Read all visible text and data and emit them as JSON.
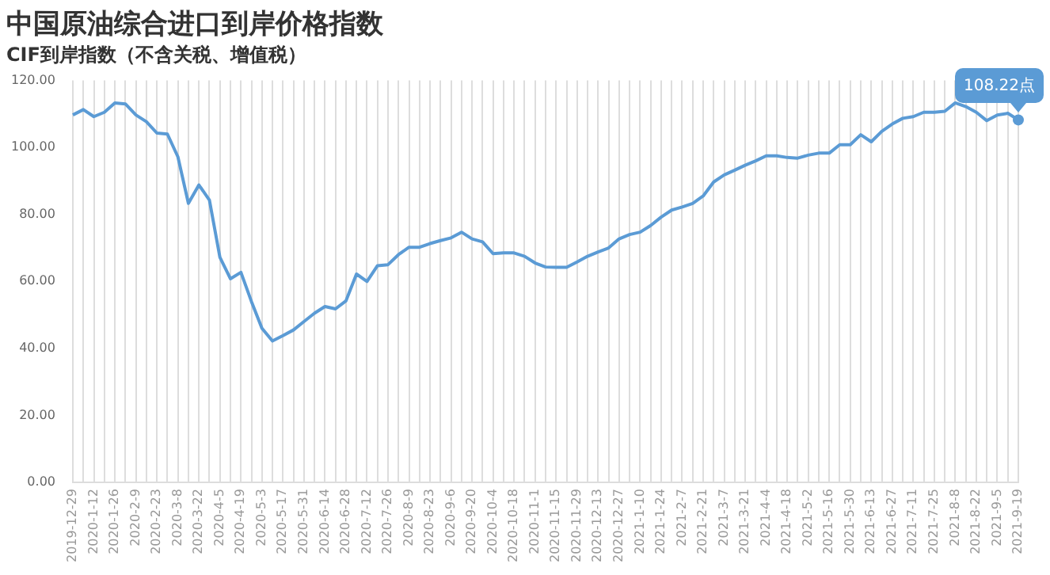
{
  "chart_data": {
    "type": "line",
    "title": "中国原油综合进口到岸价格指数",
    "subtitle": "CIF到岸指数（不含关税、增值税）",
    "categories": [
      "2019-12-29",
      null,
      "2020-1-12",
      null,
      "2020-1-26",
      null,
      "2020-2-9",
      null,
      "2020-2-23",
      null,
      "2020-3-8",
      null,
      "2020-3-22",
      null,
      "2020-4-5",
      null,
      "2020-4-19",
      null,
      "2020-5-3",
      null,
      "2020-5-17",
      null,
      "2020-5-31",
      null,
      "2020-6-14",
      null,
      "2020-6-28",
      null,
      "2020-7-12",
      null,
      "2020-7-26",
      null,
      "2020-8-9",
      null,
      "2020-8-23",
      null,
      "2020-9-6",
      null,
      "2020-9-20",
      null,
      "2020-10-4",
      null,
      "2020-10-18",
      null,
      "2020-11-1",
      null,
      "2020-11-15",
      null,
      "2020-11-29",
      null,
      "2020-12-13",
      null,
      "2020-12-27",
      null,
      "2021-1-10",
      null,
      "2021-1-24",
      null,
      "2021-2-7",
      null,
      "2021-2-21",
      null,
      "2021-3-7",
      null,
      "2021-3-21",
      null,
      "2021-4-4",
      null,
      "2021-4-18",
      null,
      "2021-5-2",
      null,
      "2021-5-16",
      null,
      "2021-5-30",
      null,
      "2021-6-13",
      null,
      "2021-6-27",
      null,
      "2021-7-11",
      null,
      "2021-7-25",
      null,
      "2021-8-8",
      null,
      "2021-8-22",
      null,
      "2021-9-5",
      null,
      "2021-9-19"
    ],
    "series": [
      {
        "color": "#5b9bd5",
        "values": [
          109.7,
          111.3,
          109.2,
          110.5,
          113.3,
          113,
          109.7,
          107.7,
          104.3,
          104,
          97.2,
          83.3,
          88.8,
          84.3,
          67.2,
          60.8,
          62.7,
          54,
          46,
          42.2,
          43.8,
          45.5,
          48,
          50.5,
          52.5,
          51.8,
          54.2,
          62.2,
          60,
          64.7,
          65,
          68,
          70.2,
          70.2,
          71.3,
          72.2,
          73,
          74.7,
          72.7,
          71.8,
          68.3,
          68.5,
          68.5,
          67.5,
          65.5,
          64.3,
          64.2,
          64.2,
          65.8,
          67.5,
          68.8,
          70,
          72.7,
          74,
          74.7,
          76.7,
          79.2,
          81.3,
          82.2,
          83.3,
          85.5,
          89.7,
          91.8,
          93.2,
          94.7,
          96,
          97.5,
          97.5,
          97,
          96.8,
          97.7,
          98.3,
          98.3,
          100.8,
          100.8,
          103.8,
          101.7,
          104.8,
          107,
          108.7,
          109.2,
          110.5,
          110.5,
          110.8,
          113.3,
          112.2,
          110.5,
          108,
          109.7,
          110.2,
          108.22
        ]
      }
    ],
    "ylim": [
      0,
      120
    ],
    "yticks": [
      {
        "value": 0,
        "label": "0.00"
      },
      {
        "value": 20,
        "label": "20.00"
      },
      {
        "value": 40,
        "label": "40.00"
      },
      {
        "value": 60,
        "label": "60.00"
      },
      {
        "value": 80,
        "label": "80.00"
      },
      {
        "value": 100,
        "label": "100.00"
      },
      {
        "value": 120,
        "label": "120.00"
      }
    ],
    "grid": "x",
    "legend": false,
    "annotations": [
      {
        "text": "108.22点",
        "x": "2021-9-19",
        "y": 108.22
      }
    ]
  }
}
